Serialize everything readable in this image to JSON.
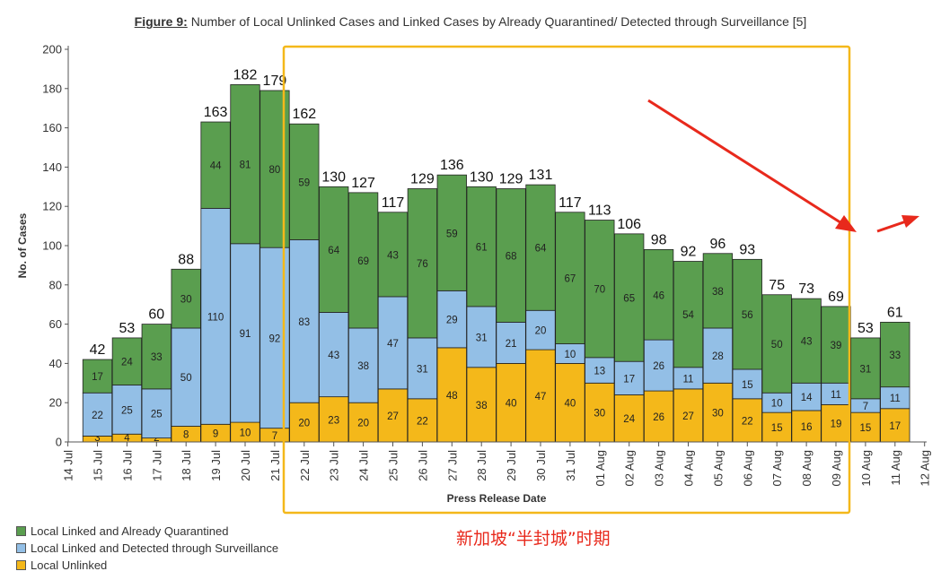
{
  "title_label": "Figure 9:",
  "title_text": "Number of Local Unlinked Cases and Linked Cases by Already Quarantined/ Detected through Surveillance [5]",
  "annotation": "新加坡“半封城”时期",
  "colors": {
    "quarantined": "#5a9e4f",
    "surveillance": "#93bfe6",
    "unlinked": "#f4b81a",
    "highlight_box": "#f4b81a",
    "arrow": "#e8291c"
  },
  "chart_data": {
    "type": "bar",
    "stacked": true,
    "xlabel": "Press Release Date",
    "ylabel": "No. of Cases",
    "ylim": [
      0,
      200
    ],
    "yticks": [
      0,
      20,
      40,
      60,
      80,
      100,
      120,
      140,
      160,
      180,
      200
    ],
    "x_tick_labels": [
      "14 Jul",
      "15 Jul",
      "16 Jul",
      "17 Jul",
      "18 Jul",
      "19 Jul",
      "20 Jul",
      "21 Jul",
      "22 Jul",
      "23 Jul",
      "24 Jul",
      "25 Jul",
      "26 Jul",
      "27 Jul",
      "28 Jul",
      "29 Jul",
      "30 Jul",
      "31 Jul",
      "01 Aug",
      "02 Aug",
      "03 Aug",
      "04 Aug",
      "05 Aug",
      "06 Aug",
      "07 Aug",
      "08 Aug",
      "09 Aug",
      "10 Aug",
      "11 Aug",
      "12 Aug"
    ],
    "categories": [
      "15 Jul",
      "16 Jul",
      "17 Jul",
      "18 Jul",
      "19 Jul",
      "20 Jul",
      "21 Jul",
      "22 Jul",
      "23 Jul",
      "24 Jul",
      "25 Jul",
      "26 Jul",
      "27 Jul",
      "28 Jul",
      "29 Jul",
      "30 Jul",
      "31 Jul",
      "01 Aug",
      "02 Aug",
      "03 Aug",
      "04 Aug",
      "05 Aug",
      "06 Aug",
      "07 Aug",
      "08 Aug",
      "09 Aug",
      "10 Aug",
      "11 Aug"
    ],
    "totals": [
      42,
      53,
      60,
      88,
      163,
      182,
      179,
      162,
      130,
      127,
      117,
      129,
      136,
      130,
      129,
      131,
      117,
      113,
      106,
      98,
      92,
      96,
      93,
      75,
      73,
      69,
      53,
      61
    ],
    "series": [
      {
        "name": "Local Unlinked",
        "values": [
          3,
          4,
          2,
          8,
          9,
          10,
          7,
          20,
          23,
          20,
          27,
          22,
          48,
          38,
          40,
          47,
          40,
          30,
          24,
          26,
          27,
          30,
          22,
          15,
          16,
          19,
          15,
          17
        ]
      },
      {
        "name": "Local Linked and Detected through Surveillance",
        "values": [
          22,
          25,
          25,
          50,
          110,
          91,
          92,
          83,
          43,
          38,
          47,
          31,
          29,
          31,
          21,
          20,
          10,
          13,
          17,
          26,
          11,
          28,
          15,
          10,
          14,
          11,
          7,
          11
        ]
      },
      {
        "name": "Local Linked and Already Quarantined",
        "values": [
          17,
          24,
          33,
          30,
          44,
          81,
          80,
          59,
          64,
          69,
          43,
          76,
          59,
          61,
          68,
          64,
          67,
          70,
          65,
          46,
          54,
          38,
          56,
          50,
          43,
          39,
          31,
          33
        ]
      }
    ],
    "legend": [
      "Local Linked and Already Quarantined",
      "Local Linked and Detected through Surveillance",
      "Local Unlinked"
    ],
    "legend_position": "bottom-left",
    "highlight_range": [
      "22 Jul",
      "09 Aug"
    ]
  }
}
